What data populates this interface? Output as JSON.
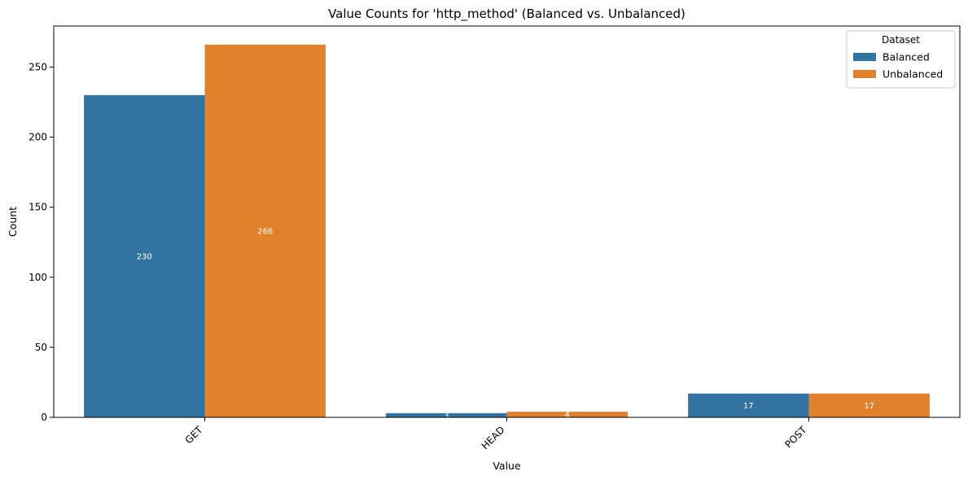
{
  "chart_data": {
    "type": "bar",
    "title": "Value Counts for 'http_method' (Balanced vs. Unbalanced)",
    "xlabel": "Value",
    "ylabel": "Count",
    "categories": [
      "GET",
      "HEAD",
      "POST"
    ],
    "series": [
      {
        "name": "Balanced",
        "values": [
          230,
          3,
          17
        ],
        "color": "#3274a1"
      },
      {
        "name": "Unbalanced",
        "values": [
          266,
          4,
          17
        ],
        "color": "#e1812c"
      }
    ],
    "ylim": [
      0,
      279.3
    ],
    "yticks": [
      0,
      50,
      100,
      150,
      200,
      250
    ],
    "grid": false,
    "legend": {
      "title": "Dataset",
      "placement": "top-right"
    }
  }
}
